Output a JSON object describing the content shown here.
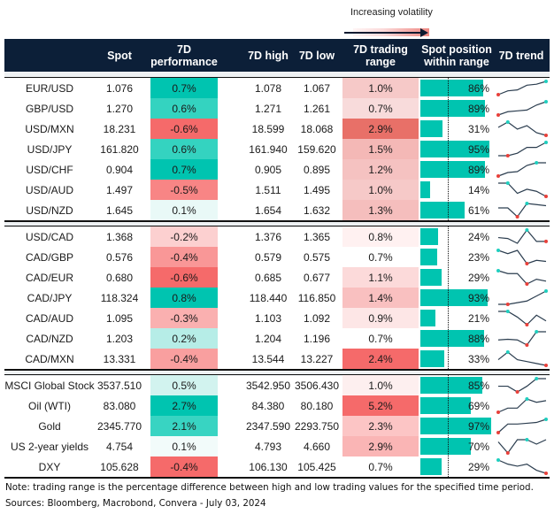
{
  "legend": {
    "label": "Increasing volatility"
  },
  "header": {
    "columns": [
      {
        "key": "label",
        "text": ""
      },
      {
        "key": "spot",
        "text": "Spot"
      },
      {
        "key": "perf",
        "text": "7D\nperformance"
      },
      {
        "key": "high",
        "text": "7D high"
      },
      {
        "key": "low",
        "text": "7D low"
      },
      {
        "key": "range",
        "text": "7D trading\nrange"
      },
      {
        "key": "pos",
        "text": "Spot position\nwithin range"
      },
      {
        "key": "trend",
        "text": "7D trend"
      }
    ]
  },
  "colors": {
    "header_bg": "#0c1f38",
    "bar": "#00c4b0",
    "trend_line": "#2b3d4f",
    "trend_high": "#1fcfbf",
    "trend_low": "#e8403a"
  },
  "sections": [
    {
      "rows": [
        {
          "label": "EUR/USD",
          "spot": "1.076",
          "perf": "0.7%",
          "perf_color": "#00c4b0",
          "high": "1.078",
          "low": "1.067",
          "range": "1.0%",
          "range_color": "#f6c9c8",
          "pos": 86,
          "pos_text": "86%",
          "trend": [
            2,
            4,
            4.5,
            7,
            7.5,
            9
          ],
          "trend_hi": 5,
          "trend_lo": 0
        },
        {
          "label": "GBP/USD",
          "spot": "1.270",
          "perf": "0.6%",
          "perf_color": "#34d3c0",
          "high": "1.271",
          "low": "1.261",
          "range": "0.7%",
          "range_color": "#f8dbdb",
          "pos": 89,
          "pos_text": "89%",
          "trend": [
            1,
            3,
            3.5,
            4,
            7,
            9
          ],
          "trend_hi": 5,
          "trend_lo": 0
        },
        {
          "label": "USD/MXN",
          "spot": "18.231",
          "perf": "-0.6%",
          "perf_color": "#f56a6a",
          "high": "18.599",
          "low": "18.068",
          "range": "2.9%",
          "range_color": "#e87068",
          "pos": 31,
          "pos_text": "31%",
          "trend": [
            6,
            9,
            5,
            7,
            3,
            1.5
          ],
          "trend_hi": 1,
          "trend_lo": 5
        },
        {
          "label": "USD/JPY",
          "spot": "161.820",
          "perf": "0.6%",
          "perf_color": "#34d3c0",
          "high": "161.940",
          "low": "159.620",
          "range": "1.5%",
          "range_color": "#f4b8b6",
          "pos": 95,
          "pos_text": "95%",
          "trend": [
            1,
            1,
            2.5,
            6,
            6,
            9
          ],
          "trend_hi": 5,
          "trend_lo": 1
        },
        {
          "label": "USD/CHF",
          "spot": "0.904",
          "perf": "0.7%",
          "perf_color": "#00c4b0",
          "high": "0.905",
          "low": "0.895",
          "range": "1.2%",
          "range_color": "#f5c2c1",
          "pos": 89,
          "pos_text": "89%",
          "trend": [
            1,
            3,
            3.5,
            7,
            8.5,
            8.5
          ],
          "trend_hi": 4,
          "trend_lo": 0
        },
        {
          "label": "USD/AUD",
          "spot": "1.497",
          "perf": "-0.5%",
          "perf_color": "#f88585",
          "high": "1.511",
          "low": "1.495",
          "range": "1.0%",
          "range_color": "#f6c9c8",
          "pos": 14,
          "pos_text": "14%",
          "trend": [
            8,
            8,
            3,
            5,
            4,
            1.5
          ],
          "trend_hi": 1,
          "trend_lo": 5
        },
        {
          "label": "USD/NZD",
          "spot": "1.645",
          "perf": "0.1%",
          "perf_color": "#e9f9f7",
          "high": "1.654",
          "low": "1.632",
          "range": "1.3%",
          "range_color": "#f5bebd",
          "pos": 61,
          "pos_text": "61%",
          "trend": [
            5,
            5,
            1,
            7,
            6.5,
            6
          ],
          "trend_hi": 3,
          "trend_lo": 2
        }
      ]
    },
    {
      "rows": [
        {
          "label": "USD/CAD",
          "spot": "1.368",
          "perf": "-0.2%",
          "perf_color": "#fcd0d0",
          "high": "1.376",
          "low": "1.365",
          "range": "0.8%",
          "range_color": "#fff1f1",
          "pos": 24,
          "pos_text": "24%",
          "trend": [
            5,
            4.5,
            2,
            9,
            3,
            3
          ],
          "trend_hi": 3,
          "trend_lo": 5
        },
        {
          "label": "CAD/GBP",
          "spot": "0.576",
          "perf": "-0.4%",
          "perf_color": "#f99797",
          "high": "0.579",
          "low": "0.575",
          "range": "0.7%",
          "range_color": "#ffffff",
          "pos": 23,
          "pos_text": "23%",
          "trend": [
            8,
            6.5,
            8,
            2,
            3.5,
            3
          ],
          "trend_hi": 0,
          "trend_lo": 3
        },
        {
          "label": "CAD/EUR",
          "spot": "0.680",
          "perf": "-0.6%",
          "perf_color": "#f56a6a",
          "high": "0.685",
          "low": "0.677",
          "range": "1.1%",
          "range_color": "#fcdada",
          "pos": 29,
          "pos_text": "29%",
          "trend": [
            8,
            6.5,
            6.5,
            1,
            3.5,
            2.5
          ],
          "trend_hi": 0,
          "trend_lo": 3
        },
        {
          "label": "CAD/JPY",
          "spot": "118.324",
          "perf": "0.8%",
          "perf_color": "#00c4b0",
          "high": "118.440",
          "low": "116.850",
          "range": "1.4%",
          "range_color": "#f9c0c0",
          "pos": 93,
          "pos_text": "93%",
          "trend": [
            1,
            1,
            2,
            3,
            6,
            9
          ],
          "trend_hi": 5,
          "trend_lo": 1
        },
        {
          "label": "CAD/AUD",
          "spot": "1.095",
          "perf": "-0.3%",
          "perf_color": "#fab0b0",
          "high": "1.103",
          "low": "1.092",
          "range": "0.9%",
          "range_color": "#fde6e6",
          "pos": 21,
          "pos_text": "21%",
          "trend": [
            8,
            8,
            5,
            1,
            6,
            3
          ],
          "trend_hi": 1,
          "trend_lo": 3
        },
        {
          "label": "CAD/NZD",
          "spot": "1.203",
          "perf": "0.2%",
          "perf_color": "#b6ede7",
          "high": "1.204",
          "low": "1.196",
          "range": "0.7%",
          "range_color": "#ffffff",
          "pos": 88,
          "pos_text": "88%",
          "trend": [
            4,
            4.3,
            4,
            1.5,
            8,
            8
          ],
          "trend_hi": 4,
          "trend_lo": 3
        },
        {
          "label": "CAD/MXN",
          "spot": "13.331",
          "perf": "-0.4%",
          "perf_color": "#f99f9f",
          "high": "13.544",
          "low": "13.227",
          "range": "2.4%",
          "range_color": "#f56a6a",
          "pos": 33,
          "pos_text": "33%",
          "trend": [
            4,
            8,
            4,
            3,
            2,
            1
          ],
          "trend_hi": 1,
          "trend_lo": 5
        }
      ]
    },
    {
      "rows": [
        {
          "label": "MSCI Global Stock",
          "spot": "3537.510",
          "perf": "0.5%",
          "perf_color": "#d2f3ef",
          "high": "3542.950",
          "low": "3506.430",
          "range": "1.0%",
          "range_color": "#fdefef",
          "pos": 85,
          "pos_text": "85%",
          "trend": [
            5,
            5,
            2,
            5,
            9,
            9
          ],
          "trend_hi": 4,
          "trend_lo": 2
        },
        {
          "label": "Oil (WTI)",
          "spot": "83.080",
          "perf": "2.7%",
          "perf_color": "#00c4b0",
          "high": "84.380",
          "low": "80.180",
          "range": "5.2%",
          "range_color": "#f56a6a",
          "pos": 69,
          "pos_text": "69%",
          "trend": [
            1,
            3.5,
            3.5,
            9,
            7,
            8
          ],
          "trend_hi": 3,
          "trend_lo": 0
        },
        {
          "label": "Gold",
          "spot": "2345.770",
          "perf": "2.1%",
          "perf_color": "#38d4c2",
          "high": "2347.590",
          "low": "2293.750",
          "range": "2.3%",
          "range_color": "#fcc5c5",
          "pos": 97,
          "pos_text": "97%",
          "trend": [
            1,
            6.5,
            6.5,
            7,
            7.5,
            9.5
          ],
          "trend_hi": 5,
          "trend_lo": 0
        },
        {
          "label": "US 2-year yields",
          "spot": "4.754",
          "perf": "0.1%",
          "perf_color": "#f2fbfa",
          "high": "4.793",
          "low": "4.660",
          "range": "2.9%",
          "range_color": "#fab5b5",
          "pos": 70,
          "pos_text": "70%",
          "trend": [
            6,
            1,
            7,
            7,
            5,
            7
          ],
          "trend_hi": 3,
          "trend_lo": 1
        },
        {
          "label": "DXY",
          "spot": "105.628",
          "perf": "-0.4%",
          "perf_color": "#f56a6a",
          "high": "106.130",
          "low": "105.425",
          "range": "0.7%",
          "range_color": "#ffffff",
          "pos": 29,
          "pos_text": "29%",
          "trend": [
            8,
            6,
            5,
            6,
            3,
            1.5
          ],
          "trend_hi": 0,
          "trend_lo": 5
        }
      ]
    }
  ],
  "footer": {
    "note": "Note: trading range is the percentage difference between high and low trading values for the specified time period.",
    "sources": "Sources: Bloomberg, Macrobond, Convera - July 03, 2024"
  }
}
